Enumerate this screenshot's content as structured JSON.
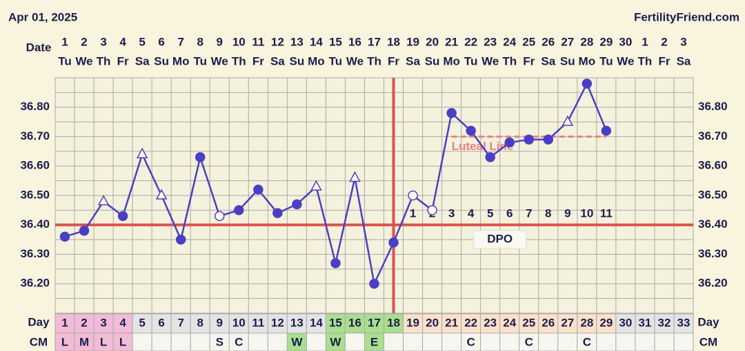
{
  "chart_data": {
    "type": "line",
    "title": "Apr 01, 2025",
    "site": "FertilityFriend.com",
    "date_label": "Date",
    "dates": [
      1,
      2,
      3,
      4,
      5,
      6,
      7,
      8,
      9,
      10,
      11,
      12,
      13,
      14,
      15,
      16,
      17,
      18,
      19,
      20,
      21,
      22,
      23,
      24,
      25,
      26,
      27,
      28,
      29,
      30,
      1,
      2,
      3
    ],
    "weekdays": [
      "Tu",
      "We",
      "Th",
      "Fr",
      "Sa",
      "Su",
      "Mo",
      "Tu",
      "We",
      "Th",
      "Fr",
      "Sa",
      "Su",
      "Mo",
      "Tu",
      "We",
      "Th",
      "Fr",
      "Sa",
      "Su",
      "Mo",
      "Tu",
      "We",
      "Th",
      "Fr",
      "Sa",
      "Su",
      "Mo",
      "Tu",
      "We",
      "Th",
      "Fr",
      "Sa"
    ],
    "day_label": "Day",
    "x": [
      1,
      2,
      3,
      4,
      5,
      6,
      7,
      8,
      9,
      10,
      11,
      12,
      13,
      14,
      15,
      16,
      17,
      18,
      19,
      20,
      21,
      22,
      23,
      24,
      25,
      26,
      27,
      28,
      29,
      30,
      31,
      32,
      33
    ],
    "cm_label": "CM",
    "cm": [
      "L",
      "M",
      "L",
      "L",
      null,
      null,
      null,
      null,
      "S",
      "C",
      null,
      null,
      "W",
      null,
      "W",
      null,
      "E",
      null,
      null,
      null,
      null,
      "C",
      null,
      null,
      "C",
      null,
      null,
      "C",
      null,
      null,
      null,
      null,
      null
    ],
    "day_colors": [
      "#f2bcd6",
      "#f2bcd6",
      "#f2bcd6",
      "#f2bcd6",
      "#e4e4e4",
      "#e4e4e4",
      "#e4e4e4",
      "#e4e4e4",
      "#e4e4e4",
      "#e4e4e4",
      "#e4e4e4",
      "#e4e4e4",
      "#e4e4e4",
      "#e4e4e4",
      "#a9df8e",
      "#a9df8e",
      "#a9df8e",
      "#a9df8e",
      "#fbe1cb",
      "#fbe1cb",
      "#fbe1cb",
      "#fbe1cb",
      "#fbe1cb",
      "#fbe1cb",
      "#fbe1cb",
      "#fbe1cb",
      "#fbe1cb",
      "#fbe1cb",
      "#fbe1cb",
      "#e4e4e4",
      "#e4e4e4",
      "#e4e4e4",
      "#e4e4e4"
    ],
    "cm_colors": [
      "#f2bcd6",
      "#f2bcd6",
      "#f2bcd6",
      "#f2bcd6",
      "#f6f6ee",
      "#f6f6ee",
      "#f6f6ee",
      "#f6f6ee",
      "#f6f6ee",
      "#f6f6ee",
      "#f6f6ee",
      "#f6f6ee",
      "#a9df8e",
      "#f6f6ee",
      "#a9df8e",
      "#f6f6ee",
      "#a9df8e",
      "#f6f6ee",
      "#f6f6ee",
      "#f6f6ee",
      "#f6f6ee",
      "#f6f6ee",
      "#f6f6ee",
      "#f6f6ee",
      "#f6f6ee",
      "#f6f6ee",
      "#f6f6ee",
      "#f6f6ee",
      "#f6f6ee",
      "#f6f6ee",
      "#f6f6ee",
      "#f6f6ee",
      "#f6f6ee"
    ],
    "series": [
      {
        "name": "Temperature",
        "color": "#4a3fc4",
        "values": [
          36.36,
          36.38,
          36.48,
          36.43,
          36.64,
          36.5,
          36.35,
          36.63,
          36.43,
          36.45,
          36.52,
          36.44,
          36.47,
          36.53,
          36.27,
          36.56,
          36.2,
          36.34,
          36.5,
          36.45,
          36.78,
          36.72,
          36.63,
          36.68,
          36.69,
          36.69,
          36.75,
          36.88,
          36.72,
          null,
          null,
          null,
          null
        ],
        "markers": [
          "filled",
          "filled",
          "triangle",
          "filled",
          "triangle",
          "triangle",
          "filled",
          "filled",
          "open",
          "filled",
          "filled",
          "filled",
          "filled",
          "triangle",
          "filled",
          "triangle",
          "filled",
          "filled",
          "open",
          "open",
          "filled",
          "filled",
          "filled",
          "filled",
          "filled",
          "filled",
          "triangle",
          "filled",
          "filled",
          null,
          null,
          null,
          null
        ]
      }
    ],
    "ylim": [
      36.1,
      36.9
    ],
    "yticks": [
      {
        "value": 36.2,
        "label": "36.20"
      },
      {
        "value": 36.3,
        "label": "36.30"
      },
      {
        "value": 36.4,
        "label": "36.40"
      },
      {
        "value": 36.5,
        "label": "36.50"
      },
      {
        "value": 36.6,
        "label": "36.60"
      },
      {
        "value": 36.7,
        "label": "36.70"
      },
      {
        "value": 36.8,
        "label": "36.80"
      }
    ],
    "ygrid": [
      36.1,
      36.15,
      36.2,
      36.25,
      36.3,
      36.35,
      36.4,
      36.45,
      36.5,
      36.55,
      36.6,
      36.65,
      36.7,
      36.75,
      36.8,
      36.85,
      36.9
    ],
    "coverline": {
      "value": 36.4,
      "color": "#d9534f"
    },
    "ovulation_day": 18,
    "luteal_line": {
      "label": "Luteal Line",
      "value": 36.7,
      "start_day": 21,
      "end_day": 29,
      "color": "#f07f7f"
    },
    "dpo": [
      null,
      null,
      null,
      null,
      null,
      null,
      null,
      null,
      null,
      null,
      null,
      null,
      null,
      null,
      null,
      null,
      null,
      null,
      1,
      2,
      3,
      4,
      5,
      6,
      7,
      8,
      9,
      10,
      11,
      null,
      null,
      null,
      null
    ],
    "dpo_label": "DPO"
  }
}
